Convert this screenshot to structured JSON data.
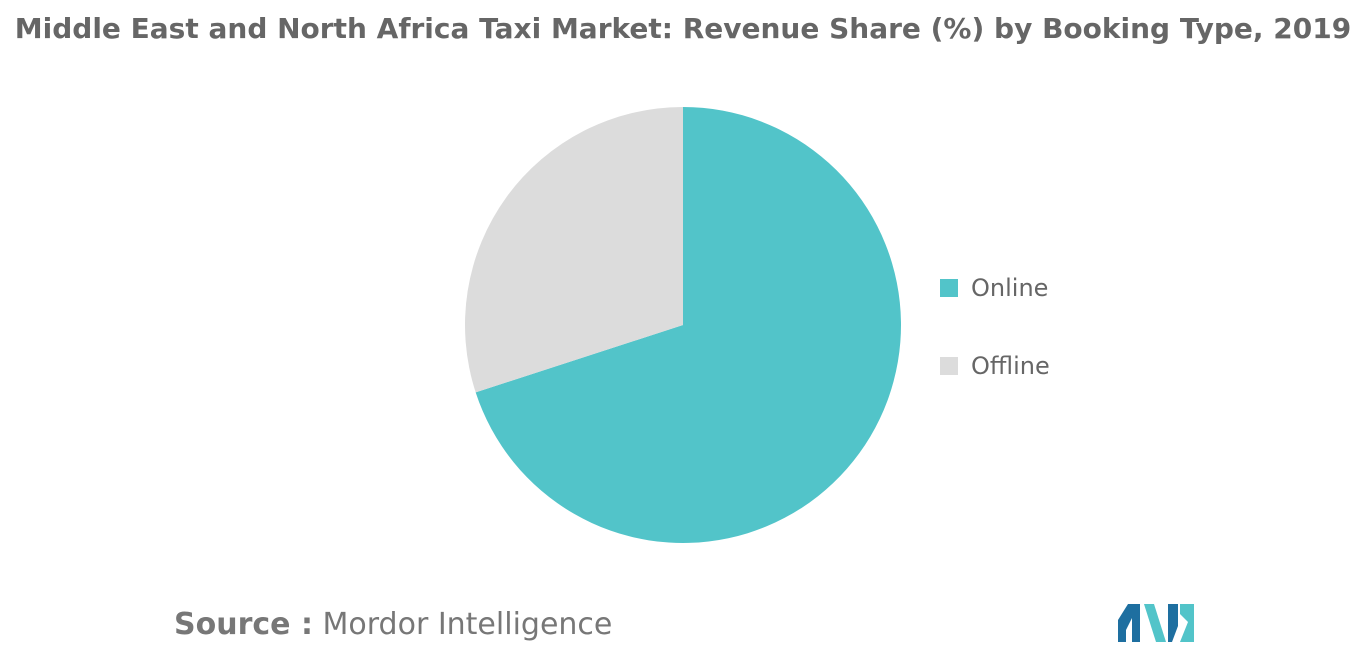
{
  "title": "Middle East and North Africa Taxi Market: Revenue Share (%) by Booking Type, 2019",
  "source": {
    "prefix": "Source :",
    "name": "Mordor Intelligence"
  },
  "chart_data": {
    "type": "pie",
    "title": "Middle East and North Africa Taxi Market: Revenue Share (%) by Booking Type, 2019",
    "categories": [
      "Online",
      "Offline"
    ],
    "values": [
      70,
      30
    ],
    "colors": [
      "#52c4c9",
      "#dcdcdc"
    ],
    "start": "12 o'clock",
    "direction": "clockwise",
    "legend_position": "right"
  },
  "logo": {
    "icon": "mordor-intelligence-logo-icon",
    "colors": [
      "#1e6fa0",
      "#52c4c9"
    ]
  }
}
